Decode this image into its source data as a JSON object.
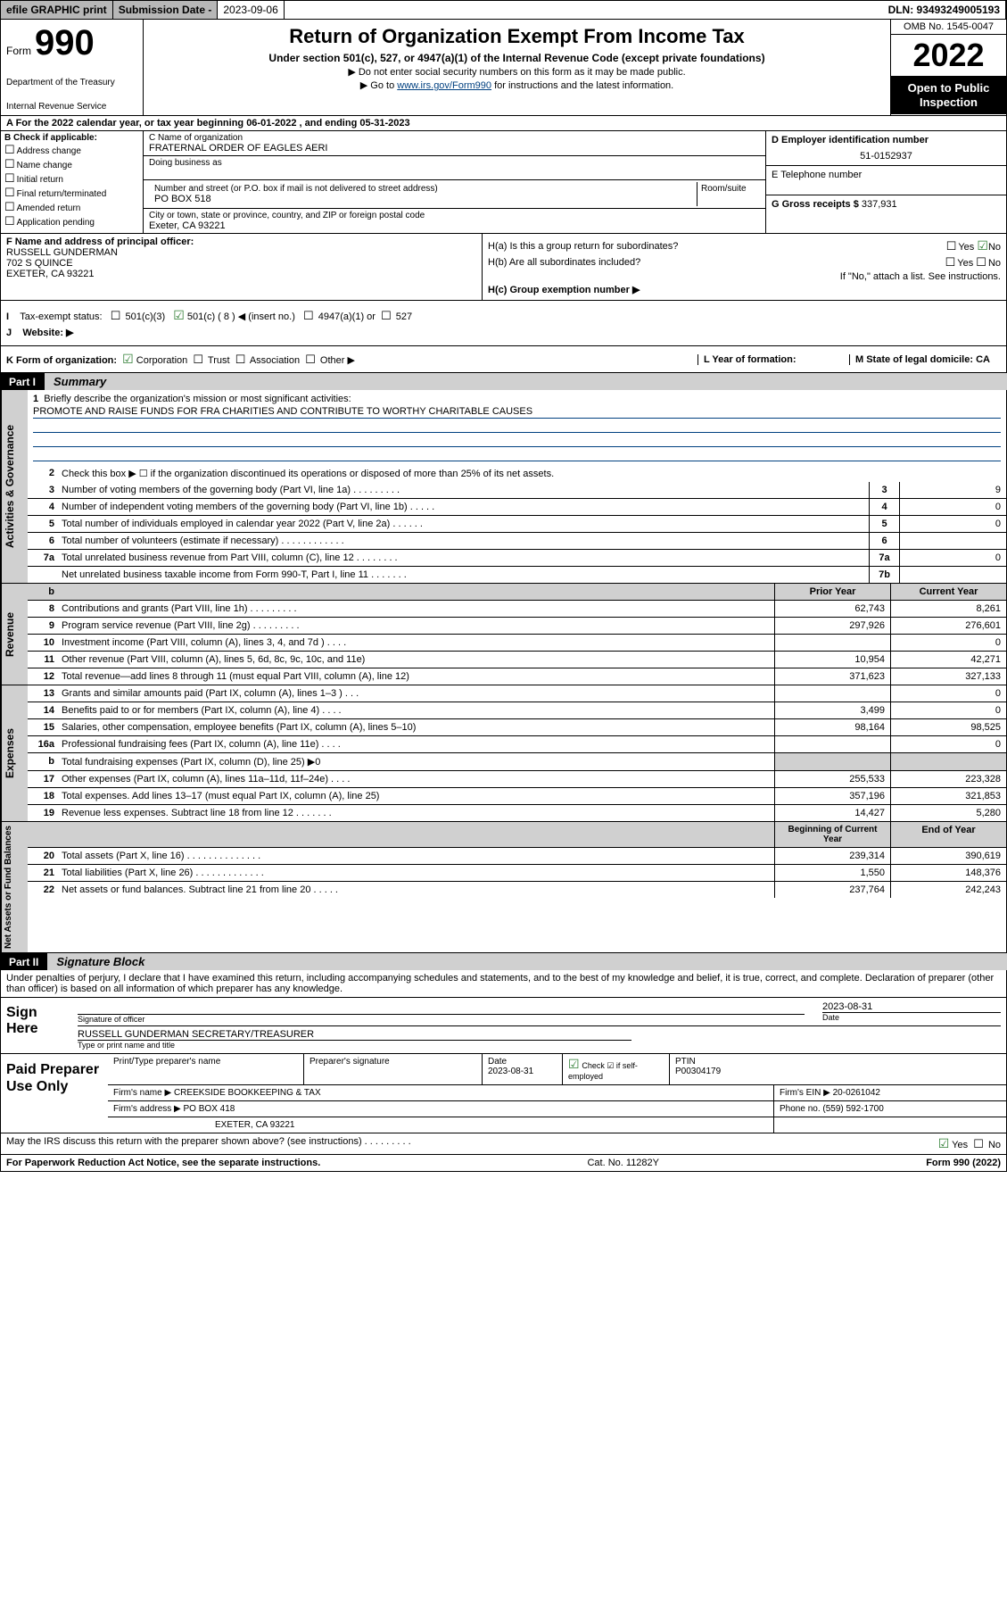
{
  "topbar": {
    "efile": "efile GRAPHIC print",
    "subLabel": "Submission Date - ",
    "subDate": "2023-09-06",
    "dln": "DLN: 93493249005193"
  },
  "header": {
    "formWord": "Form",
    "formNum": "990",
    "dept": "Department of the Treasury",
    "irs": "Internal Revenue Service",
    "title": "Return of Organization Exempt From Income Tax",
    "sub1": "Under section 501(c), 527, or 4947(a)(1) of the Internal Revenue Code (except private foundations)",
    "sub2": "▶ Do not enter social security numbers on this form as it may be made public.",
    "sub3pre": "▶ Go to ",
    "sub3link": "www.irs.gov/Form990",
    "sub3post": " for instructions and the latest information.",
    "omb": "OMB No. 1545-0047",
    "year": "2022",
    "open": "Open to Public Inspection"
  },
  "rowA": "A For the 2022 calendar year, or tax year beginning 06-01-2022    , and ending 05-31-2023",
  "checkB": {
    "label": "B Check if applicable:",
    "items": [
      "Address change",
      "Name change",
      "Initial return",
      "Final return/terminated",
      "Amended return",
      "Application pending"
    ]
  },
  "boxC": {
    "nameLbl": "C Name of organization",
    "name": "FRATERNAL ORDER OF EAGLES AERI",
    "dbaLbl": "Doing business as",
    "addrLbl": "Number and street (or P.O. box if mail is not delivered to street address)",
    "addr": "PO BOX 518",
    "roomLbl": "Room/suite",
    "cityLbl": "City or town, state or province, country, and ZIP or foreign postal code",
    "city": "Exeter, CA  93221"
  },
  "boxD": {
    "einLbl": "D Employer identification number",
    "ein": "51-0152937",
    "telLbl": "E Telephone number",
    "grossLbl": "G Gross receipts $ ",
    "gross": "337,931"
  },
  "boxF": {
    "lbl": "F  Name and address of principal officer:",
    "name": "RUSSELL GUNDERMAN",
    "addr1": "702 S QUINCE",
    "addr2": "EXETER, CA  93221"
  },
  "boxH": {
    "a": "H(a)  Is this a group return for subordinates?",
    "b": "H(b)  Are all subordinates included?",
    "bnote": "If \"No,\" attach a list. See instructions.",
    "c": "H(c)  Group exemption number ▶",
    "yes": "Yes",
    "no": "No"
  },
  "boxI": {
    "lbl": "Tax-exempt status:",
    "o1": "501(c)(3)",
    "o2": "501(c) ( 8 ) ◀ (insert no.)",
    "o3": "4947(a)(1) or",
    "o4": "527"
  },
  "boxJ": "Website: ▶",
  "boxK": {
    "lbl": "K Form of organization:",
    "o1": "Corporation",
    "o2": "Trust",
    "o3": "Association",
    "o4": "Other ▶",
    "l": "L Year of formation:",
    "m": "M State of legal domicile: CA"
  },
  "part1": {
    "tab": "Part I",
    "title": "Summary"
  },
  "summary": {
    "q1lbl": "1",
    "q1text": "Briefly describe the organization's mission or most significant activities:",
    "q1val": "PROMOTE AND RAISE FUNDS FOR FRA CHARITIES AND CONTRIBUTE TO WORTHY CHARITABLE CAUSES",
    "q2": "Check this box ▶ ☐  if the organization discontinued its operations or disposed of more than 25% of its net assets.",
    "rows_gov": [
      {
        "n": "3",
        "t": "Number of voting members of the governing body (Part VI, line 1a)   .     .     .     .     .     .     .     .     .",
        "box": "3",
        "v": "9"
      },
      {
        "n": "4",
        "t": "Number of independent voting members of the governing body (Part VI, line 1b)   .     .     .     .     .",
        "box": "4",
        "v": "0"
      },
      {
        "n": "5",
        "t": "Total number of individuals employed in calendar year 2022 (Part V, line 2a)   .     .     .     .     .     .",
        "box": "5",
        "v": "0"
      },
      {
        "n": "6",
        "t": "Total number of volunteers (estimate if necessary)   .     .     .     .     .     .     .     .     .     .     .     .",
        "box": "6",
        "v": ""
      },
      {
        "n": "7a",
        "t": "Total unrelated business revenue from Part VIII, column (C), line 12   .     .     .     .     .     .     .     .",
        "box": "7a",
        "v": "0"
      },
      {
        "n": "",
        "t": "Net unrelated business taxable income from Form 990-T, Part I, line 11   .     .     .     .     .     .     .",
        "box": "7b",
        "v": ""
      }
    ],
    "colhdr_b": "b",
    "colhdr_prior": "Prior Year",
    "colhdr_curr": "Current Year",
    "rows_rev": [
      {
        "n": "8",
        "t": "Contributions and grants (Part VIII, line 1h)   .     .     .     .     .     .     .     .     .",
        "p": "62,743",
        "c": "8,261"
      },
      {
        "n": "9",
        "t": "Program service revenue (Part VIII, line 2g)   .     .     .     .     .     .     .     .     .",
        "p": "297,926",
        "c": "276,601"
      },
      {
        "n": "10",
        "t": "Investment income (Part VIII, column (A), lines 3, 4, and 7d )   .     .     .     .",
        "p": "",
        "c": "0"
      },
      {
        "n": "11",
        "t": "Other revenue (Part VIII, column (A), lines 5, 6d, 8c, 9c, 10c, and 11e)",
        "p": "10,954",
        "c": "42,271"
      },
      {
        "n": "12",
        "t": "Total revenue—add lines 8 through 11 (must equal Part VIII, column (A), line 12)",
        "p": "371,623",
        "c": "327,133"
      }
    ],
    "rows_exp": [
      {
        "n": "13",
        "t": "Grants and similar amounts paid (Part IX, column (A), lines 1–3 )   .     .     .",
        "p": "",
        "c": "0"
      },
      {
        "n": "14",
        "t": "Benefits paid to or for members (Part IX, column (A), line 4)   .     .     .     .",
        "p": "3,499",
        "c": "0"
      },
      {
        "n": "15",
        "t": "Salaries, other compensation, employee benefits (Part IX, column (A), lines 5–10)",
        "p": "98,164",
        "c": "98,525"
      },
      {
        "n": "16a",
        "t": "Professional fundraising fees (Part IX, column (A), line 11e)   .     .     .     .",
        "p": "",
        "c": "0"
      },
      {
        "n": "b",
        "t": "Total fundraising expenses (Part IX, column (D), line 25) ▶0",
        "p": "—",
        "c": "—"
      },
      {
        "n": "17",
        "t": "Other expenses (Part IX, column (A), lines 11a–11d, 11f–24e)   .     .     .     .",
        "p": "255,533",
        "c": "223,328"
      },
      {
        "n": "18",
        "t": "Total expenses. Add lines 13–17 (must equal Part IX, column (A), line 25)",
        "p": "357,196",
        "c": "321,853"
      },
      {
        "n": "19",
        "t": "Revenue less expenses. Subtract line 18 from line 12   .     .     .     .     .     .     .",
        "p": "14,427",
        "c": "5,280"
      }
    ],
    "colhdr_beg": "Beginning of Current Year",
    "colhdr_end": "End of Year",
    "rows_net": [
      {
        "n": "20",
        "t": "Total assets (Part X, line 16)   .     .     .     .     .     .     .     .     .     .     .     .     .     .",
        "p": "239,314",
        "c": "390,619"
      },
      {
        "n": "21",
        "t": "Total liabilities (Part X, line 26)   .     .     .     .     .     .     .     .     .     .     .     .     .",
        "p": "1,550",
        "c": "148,376"
      },
      {
        "n": "22",
        "t": "Net assets or fund balances. Subtract line 21 from line 20   .     .     .     .     .",
        "p": "237,764",
        "c": "242,243"
      }
    ],
    "vlabels": {
      "gov": "Activities & Governance",
      "rev": "Revenue",
      "exp": "Expenses",
      "net": "Net Assets or Fund Balances"
    }
  },
  "part2": {
    "tab": "Part II",
    "title": "Signature Block"
  },
  "penalty": "Under penalties of perjury, I declare that I have examined this return, including accompanying schedules and statements, and to the best of my knowledge and belief, it is true, correct, and complete. Declaration of preparer (other than officer) is based on all information of which preparer has any knowledge.",
  "sign": {
    "left": "Sign Here",
    "sigLbl": "Signature of officer",
    "date": "2023-08-31",
    "dateLbl": "Date",
    "name": "RUSSELL GUNDERMAN  SECRETARY/TREASURER",
    "nameLbl": "Type or print name and title"
  },
  "prep": {
    "left": "Paid Preparer Use Only",
    "h1": "Print/Type preparer's name",
    "h2": "Preparer's signature",
    "h3": "Date",
    "h3v": "2023-08-31",
    "h4": "Check ☑ if self-employed",
    "h5": "PTIN",
    "h5v": "P00304179",
    "firmLbl": "Firm's name    ▶ ",
    "firm": "CREEKSIDE BOOKKEEPING & TAX",
    "einLbl": "Firm's EIN ▶ ",
    "ein": "20-0261042",
    "addrLbl": "Firm's address ▶ ",
    "addr": "PO BOX 418",
    "addr2": "EXETER, CA  93221",
    "phoneLbl": "Phone no. ",
    "phone": "(559) 592-1700"
  },
  "footer": {
    "q": "May the IRS discuss this return with the preparer shown above? (see instructions)   .     .     .     .     .     .     .     .     .",
    "yes": "Yes",
    "no": "No",
    "l": "For Paperwork Reduction Act Notice, see the separate instructions.",
    "m": "Cat. No. 11282Y",
    "r": "Form 990 (2022)"
  }
}
